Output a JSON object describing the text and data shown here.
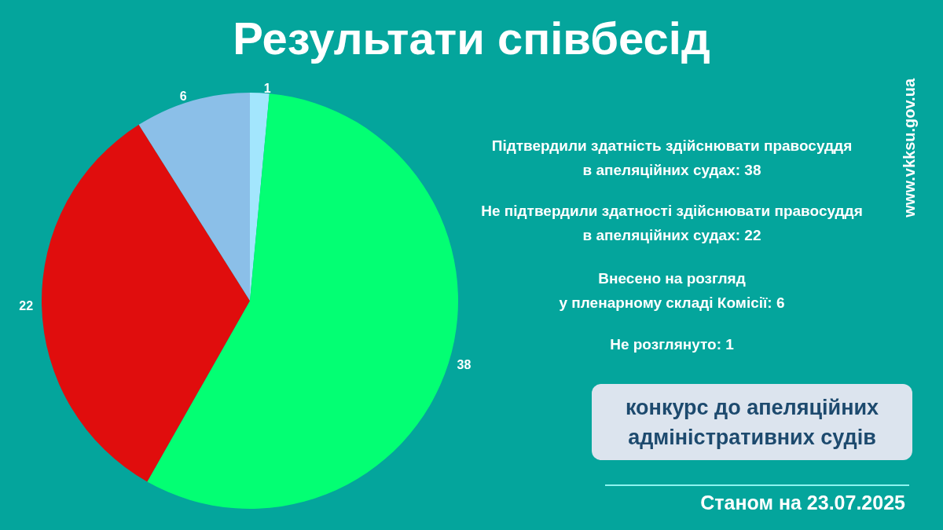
{
  "chart_data": {
    "type": "pie",
    "title": "Результати співбесід",
    "categories": [
      null,
      null,
      null,
      null
    ],
    "values": [
      1,
      38,
      22,
      6
    ],
    "colors": [
      "#a3e6fd",
      "#03ff73",
      "#e00d0d",
      "#8bbfe8"
    ],
    "data_labels": true,
    "annotations": [
      "Підтвердили здатність здійснювати правосуддя\nв апеляційних судах: 38",
      "Не підтвердили здатності здійснювати правосуддя\nв апеляційних судах: 22",
      "Внесено на розгляд\nу пленарному складі Комісії: 6",
      "Не розглянуто: 1",
      "конкурс до апеляційних\nадміністративних судів",
      "Станом на 23.07.2025",
      "www.vkksu.gov.ua"
    ]
  }
}
